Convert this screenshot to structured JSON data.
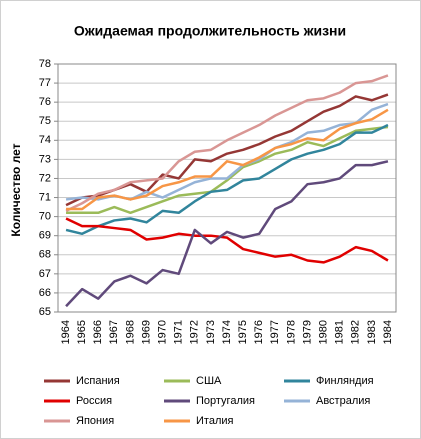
{
  "chart_data": {
    "type": "line",
    "title": "Ожидаемая продолжительность жизни",
    "y_label": "Количество лет",
    "categories": [
      "1964",
      "1965",
      "1966",
      "1967",
      "1968",
      "1969",
      "1970",
      "1971",
      "1972",
      "1973",
      "1974",
      "1975",
      "1976",
      "1977",
      "1978",
      "1979",
      "1980",
      "1981",
      "1982",
      "1983",
      "1984"
    ],
    "ylim": [
      65,
      78
    ],
    "yticks": [
      65,
      66,
      67,
      68,
      69,
      70,
      71,
      72,
      73,
      74,
      75,
      76,
      77,
      78
    ],
    "grid": true,
    "legend": "bottom",
    "series": [
      {
        "name": "Испания",
        "color": "#953735",
        "values": [
          70.6,
          71.0,
          71.1,
          71.4,
          71.7,
          71.3,
          72.2,
          72.0,
          73.0,
          72.9,
          73.3,
          73.5,
          73.8,
          74.2,
          74.5,
          75.0,
          75.5,
          75.8,
          76.3,
          76.1,
          76.4
        ]
      },
      {
        "name": "США",
        "color": "#9bbb59",
        "values": [
          70.2,
          70.2,
          70.2,
          70.5,
          70.2,
          70.5,
          70.8,
          71.1,
          71.2,
          71.3,
          71.9,
          72.6,
          72.9,
          73.3,
          73.5,
          73.9,
          73.7,
          74.1,
          74.5,
          74.6,
          74.7
        ]
      },
      {
        "name": "Финляндия",
        "color": "#31859c",
        "values": [
          69.3,
          69.1,
          69.5,
          69.8,
          69.9,
          69.7,
          70.3,
          70.2,
          70.8,
          71.3,
          71.4,
          71.9,
          72.0,
          72.5,
          73.0,
          73.3,
          73.5,
          73.8,
          74.4,
          74.4,
          74.8
        ]
      },
      {
        "name": "Россия",
        "color": "#e00000",
        "values": [
          69.9,
          69.5,
          69.5,
          69.4,
          69.3,
          68.8,
          68.9,
          69.1,
          69.0,
          69.0,
          68.9,
          68.3,
          68.1,
          67.9,
          68.0,
          67.7,
          67.6,
          67.9,
          68.4,
          68.2,
          67.7
        ]
      },
      {
        "name": "Португалия",
        "color": "#604a7b",
        "values": [
          65.3,
          66.2,
          65.7,
          66.6,
          66.9,
          66.5,
          67.2,
          67.0,
          69.3,
          68.6,
          69.2,
          68.9,
          69.1,
          70.4,
          70.8,
          71.7,
          71.8,
          72.0,
          72.7,
          72.7,
          72.9
        ]
      },
      {
        "name": "Австралия",
        "color": "#95b3d7",
        "values": [
          70.9,
          71.0,
          70.9,
          71.1,
          70.9,
          71.3,
          71.0,
          71.4,
          71.8,
          72.0,
          72.0,
          72.7,
          73.0,
          73.6,
          73.9,
          74.4,
          74.5,
          74.8,
          74.9,
          75.6,
          75.9
        ]
      },
      {
        "name": "Япония",
        "color": "#d99694",
        "values": [
          70.3,
          70.7,
          71.2,
          71.4,
          71.8,
          71.9,
          72.0,
          72.9,
          73.4,
          73.5,
          74.0,
          74.4,
          74.8,
          75.3,
          75.7,
          76.1,
          76.2,
          76.5,
          77.0,
          77.1,
          77.4
        ]
      },
      {
        "name": "Италия",
        "color": "#f79646",
        "values": [
          70.4,
          70.4,
          71.0,
          71.1,
          70.9,
          71.1,
          71.6,
          71.8,
          72.1,
          72.1,
          72.9,
          72.7,
          73.1,
          73.6,
          73.8,
          74.1,
          74.0,
          74.6,
          74.9,
          75.1,
          75.6
        ]
      }
    ]
  }
}
